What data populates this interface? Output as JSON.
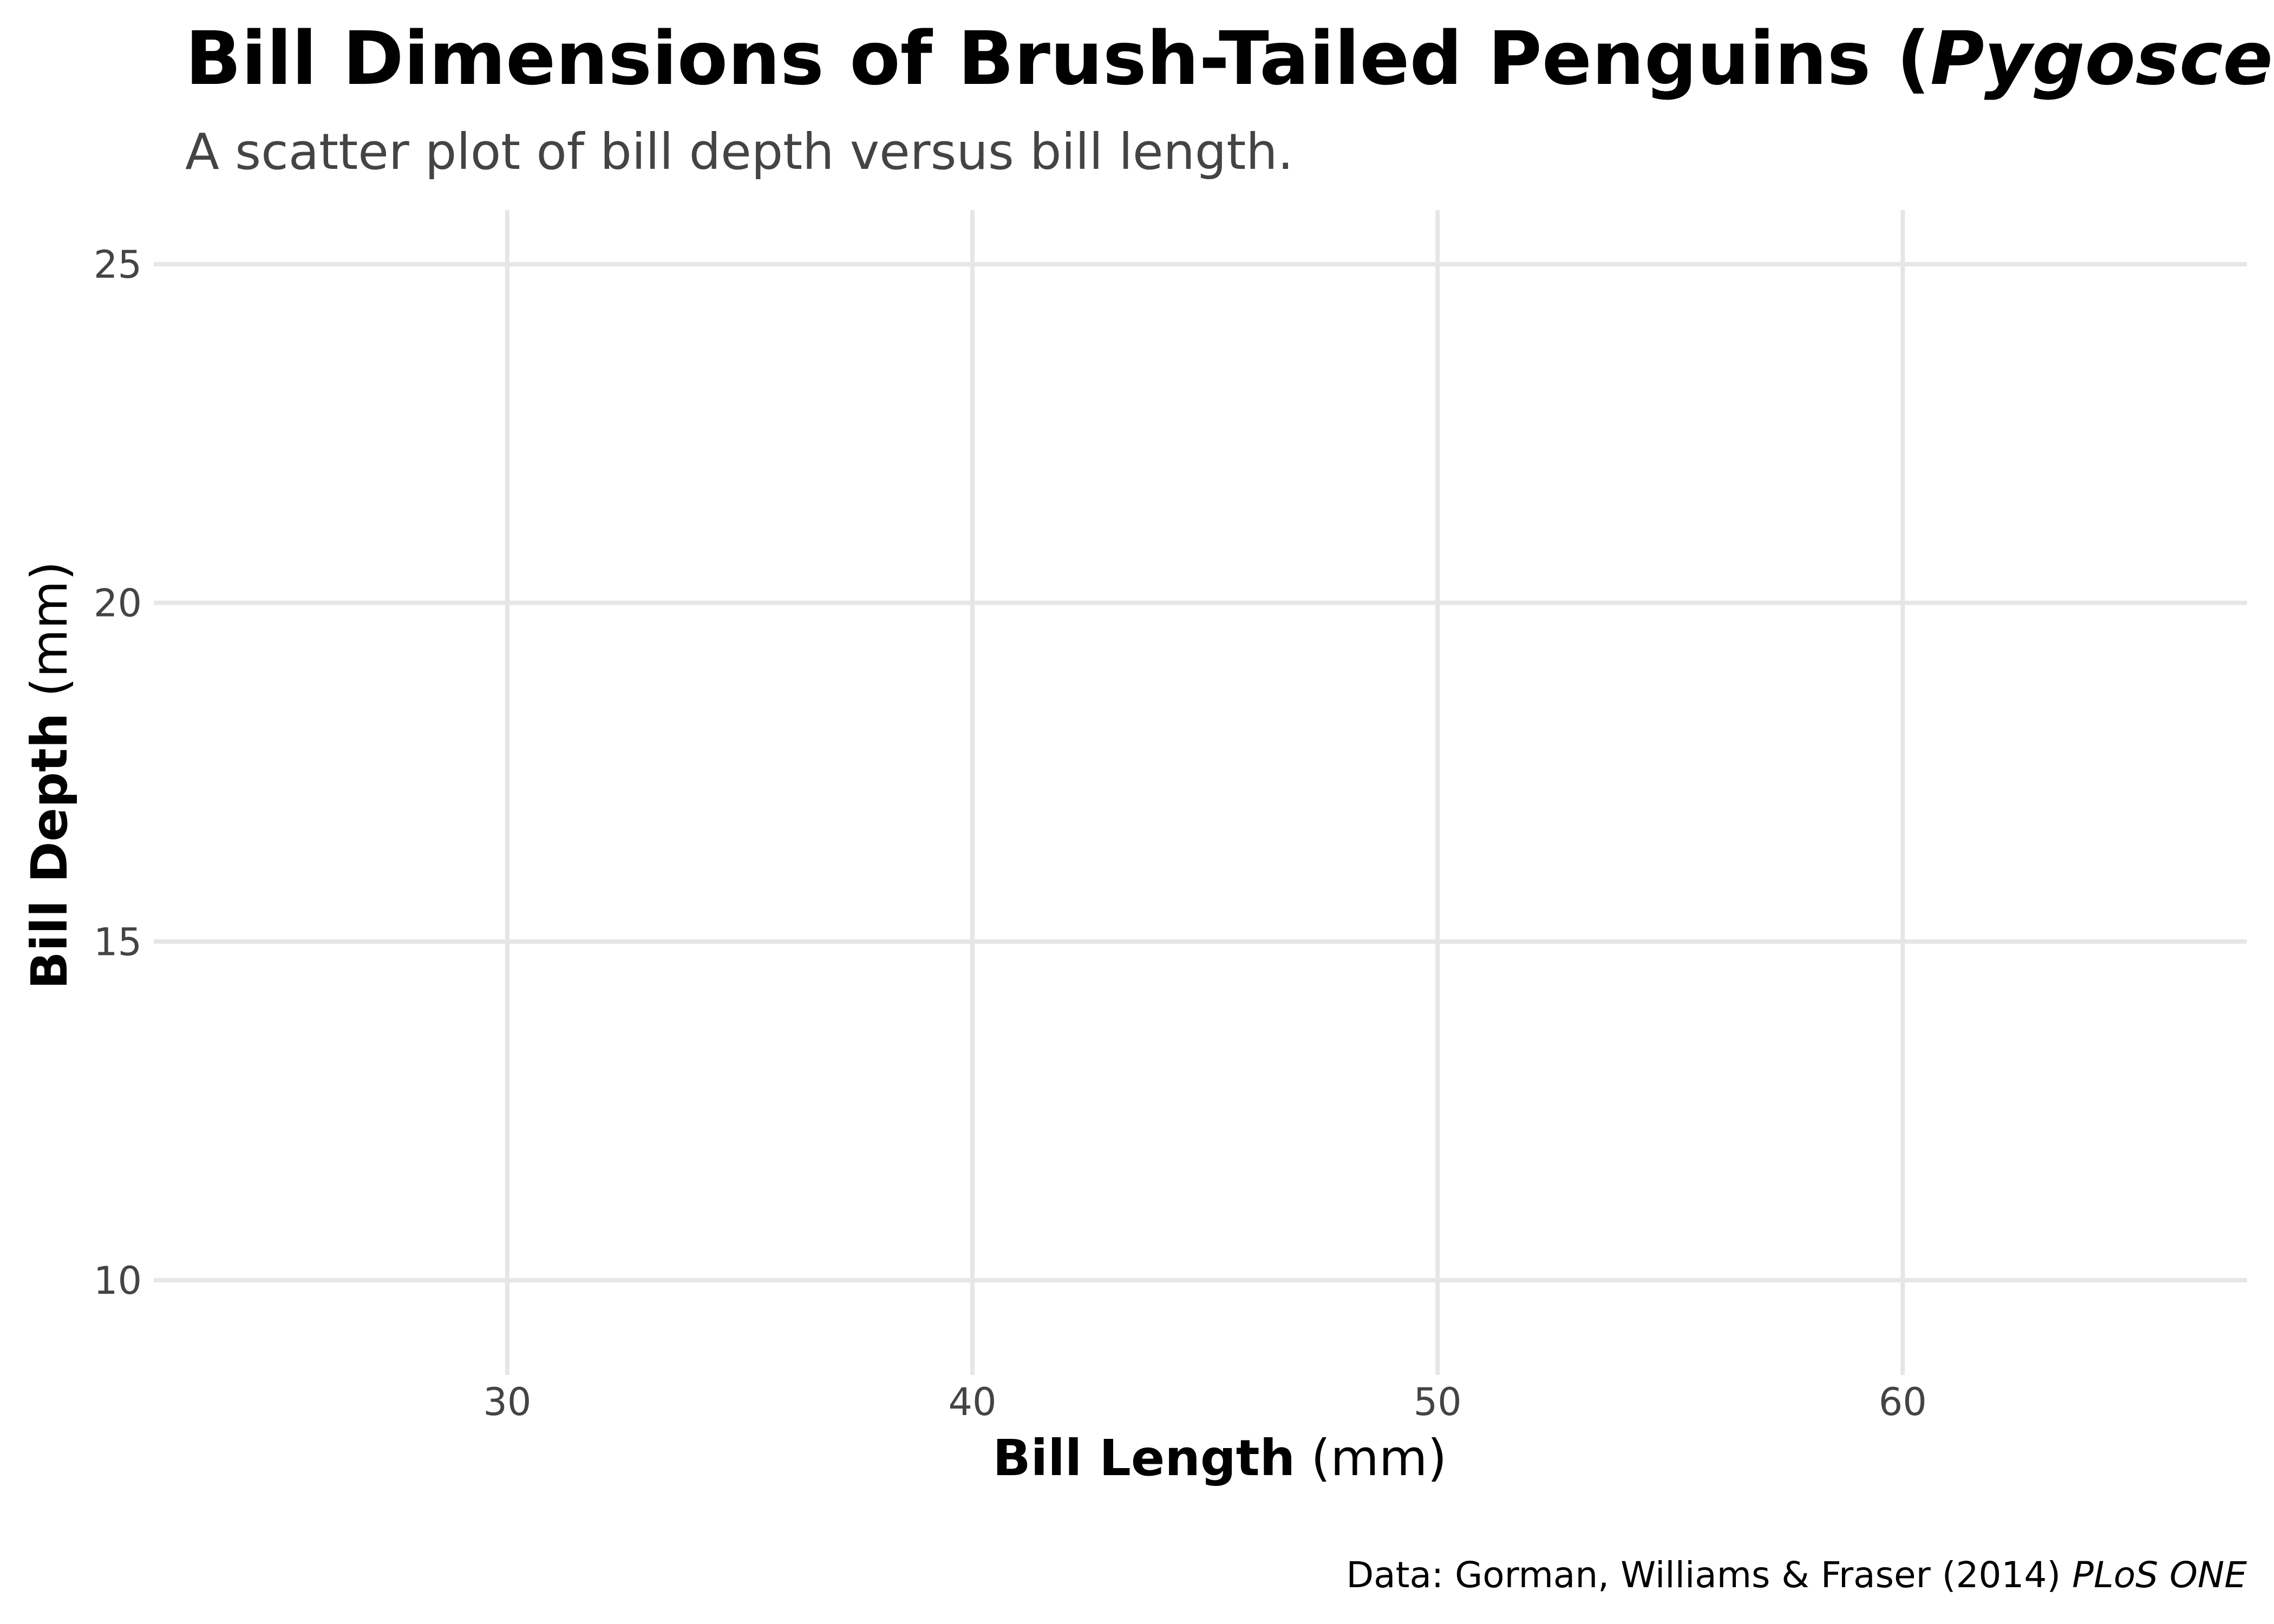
{
  "chart_data": {
    "type": "scatter",
    "title": "Bill Dimensions of Brush-Tailed Penguins (",
    "title_italic": "Pygoscelis",
    "subtitle": "A scatter plot of bill depth versus bill length.",
    "xlabel": "Bill Length",
    "xlabel_unit": " (mm)",
    "ylabel": "Bill Depth",
    "ylabel_unit": " (mm)",
    "xlim": [
      22.4,
      67.4
    ],
    "ylim": [
      8.6,
      25.8
    ],
    "x_ticks": [
      30,
      40,
      50,
      60
    ],
    "x_tick_labels": [
      "30",
      "40",
      "50",
      "60"
    ],
    "y_ticks": [
      10,
      15,
      20,
      25
    ],
    "y_tick_labels": [
      "10",
      "15",
      "20",
      "25"
    ],
    "grid": true,
    "points": [],
    "caption": "Data: Gorman, Williams & Fraser (2014) ",
    "caption_italic": "PLoS ONE",
    "colors": {
      "grid": "#e6e6e6",
      "text": "#000000",
      "muted": "#444444"
    }
  }
}
